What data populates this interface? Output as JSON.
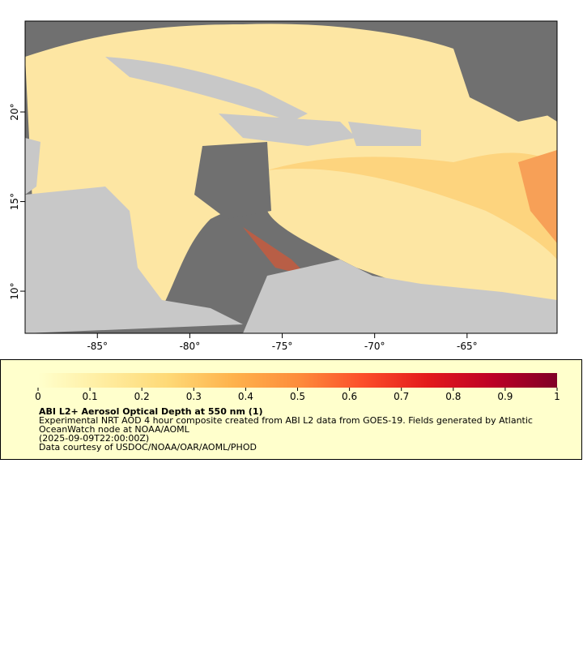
{
  "map": {
    "xlim": [
      -88.91,
      -60.13
    ],
    "ylim": [
      7.65,
      25.07
    ],
    "xticks": [
      {
        "value": -85,
        "label": "-85°"
      },
      {
        "value": -80,
        "label": "-80°"
      },
      {
        "value": -75,
        "label": "-75°"
      },
      {
        "value": -70,
        "label": "-70°"
      },
      {
        "value": -65,
        "label": "-65°"
      }
    ],
    "yticks": [
      {
        "value": 10,
        "label": "10°"
      },
      {
        "value": 15,
        "label": "15°"
      },
      {
        "value": 20,
        "label": "20°"
      }
    ]
  },
  "legend": {
    "colorbar": {
      "range": [
        0,
        1
      ],
      "ticks": [
        0,
        0.1,
        0.2,
        0.3,
        0.4,
        0.5,
        0.6,
        0.7,
        0.8,
        0.9,
        1
      ],
      "colors": [
        "#ffffcc",
        "#ffeda0",
        "#fed976",
        "#feb24c",
        "#fd8d3c",
        "#fc4e2a",
        "#e31a1c",
        "#bd0026",
        "#800026"
      ]
    },
    "title": "ABI L2+ Aerosol Optical Depth at 550 nm (1)",
    "description": [
      "Experimental NRT AOD 4 hour composite created from ABI L2 data from GOES-19. Fields generated by Atlantic",
      "OceanWatch node at NOAA/AOML"
    ],
    "time": "(2025-09-09T22:00:00Z)",
    "credit": "Data courtesy of USDOC/NOAA/OAR/AOML/PHOD"
  }
}
